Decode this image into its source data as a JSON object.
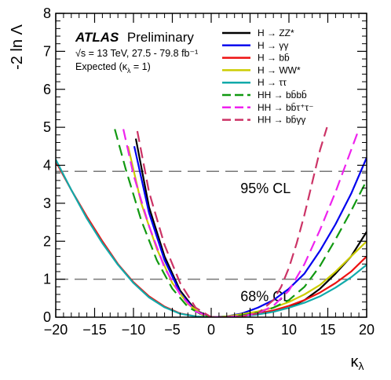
{
  "chart_data": {
    "type": "line",
    "xlabel": "κλ",
    "ylabel": "-2 ln Λ",
    "xlim": [
      -20,
      20
    ],
    "ylim": [
      0,
      8
    ],
    "x_ticks": [
      -20,
      -15,
      -10,
      -5,
      0,
      5,
      10,
      15,
      20
    ],
    "y_ticks": [
      0,
      1,
      2,
      3,
      4,
      5,
      6,
      7,
      8
    ],
    "experiment": "ATLAS",
    "status": "Preliminary",
    "energy_lumi": "√s = 13 TeV, 27.5 - 79.8 fb⁻¹",
    "expected": "Expected (κλ = 1)",
    "cl_lines": [
      {
        "y": 3.84,
        "label": "95% CL",
        "label_x": 7
      },
      {
        "y": 1.0,
        "label": "68% CL",
        "label_x": 7
      }
    ],
    "series": [
      {
        "name": "H → ZZ*",
        "color": "#000000",
        "dash": "solid",
        "x": [
          -9.7,
          -8,
          -6,
          -4,
          -2,
          0,
          2,
          4,
          6,
          8,
          10,
          12,
          14,
          16,
          18,
          20
        ],
        "y": [
          4.7,
          2.9,
          1.6,
          0.7,
          0.18,
          0.0,
          0.0,
          0.05,
          0.1,
          0.15,
          0.25,
          0.45,
          0.75,
          1.15,
          1.6,
          2.25
        ]
      },
      {
        "name": "H → γγ",
        "color": "#0000ee",
        "dash": "solid",
        "x": [
          -9.9,
          -8,
          -6,
          -4,
          -2,
          0,
          2,
          4,
          6,
          8,
          10,
          12,
          14,
          16,
          18,
          20
        ],
        "y": [
          4.5,
          2.75,
          1.5,
          0.65,
          0.15,
          0.0,
          0.02,
          0.1,
          0.25,
          0.45,
          0.75,
          1.15,
          1.75,
          2.45,
          3.25,
          4.2
        ]
      },
      {
        "name": "H → bb̄",
        "color": "#ee1111",
        "dash": "solid",
        "x": [
          -20,
          -18,
          -16,
          -14,
          -12,
          -10,
          -8,
          -6,
          -4,
          -2,
          0,
          2,
          4,
          6,
          8,
          10,
          12,
          14,
          16,
          18,
          20
        ],
        "y": [
          4.1,
          3.35,
          2.65,
          2.0,
          1.4,
          0.92,
          0.55,
          0.28,
          0.1,
          0.02,
          0.0,
          0.01,
          0.04,
          0.1,
          0.18,
          0.3,
          0.45,
          0.65,
          0.9,
          1.2,
          1.6
        ]
      },
      {
        "name": "H → WW*",
        "color": "#cccc00",
        "dash": "solid",
        "x": [
          -10.7,
          -9,
          -7,
          -5,
          -3,
          -1,
          0,
          2,
          4,
          6,
          8,
          10,
          12,
          14,
          16,
          18,
          20
        ],
        "y": [
          4.5,
          3.0,
          1.8,
          0.9,
          0.35,
          0.04,
          0.0,
          0.02,
          0.08,
          0.15,
          0.25,
          0.4,
          0.6,
          0.85,
          1.2,
          1.6,
          2.0
        ]
      },
      {
        "name": "H → ττ",
        "color": "#11aaaa",
        "dash": "solid",
        "x": [
          -20,
          -18,
          -16,
          -14,
          -12,
          -10,
          -8,
          -6,
          -4,
          -2,
          0,
          2,
          4,
          6,
          8,
          10,
          12,
          14,
          16,
          18,
          20
        ],
        "y": [
          4.15,
          3.35,
          2.6,
          1.95,
          1.38,
          0.9,
          0.52,
          0.26,
          0.09,
          0.02,
          0.0,
          0.01,
          0.03,
          0.07,
          0.14,
          0.25,
          0.38,
          0.55,
          0.78,
          1.05,
          1.38
        ]
      },
      {
        "name": "HH → bb̄bb̄",
        "color": "#119911",
        "dash": "dash",
        "x": [
          -12.4,
          -11,
          -9,
          -7,
          -5,
          -3,
          -1,
          0,
          1,
          2,
          4,
          6,
          8,
          10,
          12,
          14,
          16,
          18,
          20
        ],
        "y": [
          4.95,
          3.9,
          2.55,
          1.5,
          0.75,
          0.27,
          0.04,
          0.0,
          0.0,
          0.01,
          0.05,
          0.12,
          0.25,
          0.45,
          0.8,
          1.35,
          2.05,
          2.8,
          3.6
        ]
      },
      {
        "name": "HH → bb̄τ⁺τ⁻",
        "color": "#ee22ee",
        "dash": "dash",
        "x": [
          -11.3,
          -10,
          -8,
          -6,
          -4,
          -2,
          0,
          2,
          4,
          6,
          8,
          10,
          12,
          14,
          16,
          18,
          19
        ],
        "y": [
          4.95,
          3.75,
          2.4,
          1.3,
          0.6,
          0.15,
          0.0,
          0.01,
          0.03,
          0.1,
          0.3,
          0.7,
          1.4,
          2.3,
          3.3,
          4.4,
          4.95
        ]
      },
      {
        "name": "HH → bb̄γγ",
        "color": "#cc3366",
        "dash": "dash",
        "x": [
          -9.5,
          -8,
          -6,
          -4,
          -2,
          0,
          2,
          4,
          6,
          8,
          9,
          10,
          11,
          12,
          13,
          14,
          14.9
        ],
        "y": [
          4.9,
          3.3,
          1.9,
          0.9,
          0.25,
          0.0,
          0.0,
          0.02,
          0.1,
          0.45,
          0.8,
          1.3,
          1.95,
          2.7,
          3.55,
          4.4,
          5.0
        ]
      }
    ]
  }
}
